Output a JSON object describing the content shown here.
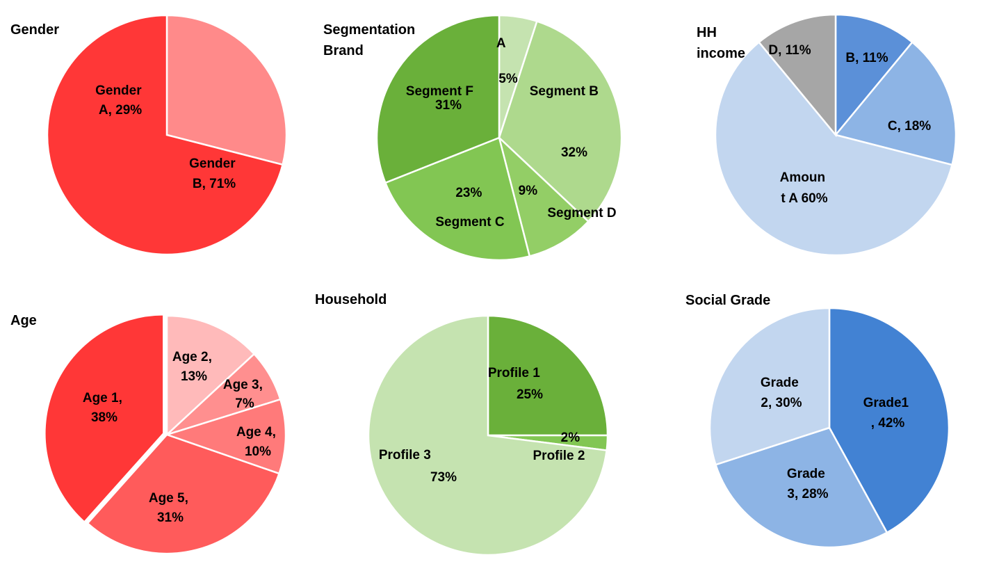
{
  "chart_data": [
    {
      "type": "pie",
      "title_lines": [
        "Gender"
      ],
      "slices": [
        {
          "label_lines": [
            "Gender",
            "A, 29%"
          ],
          "value": 29,
          "color": "#FF8A8A"
        },
        {
          "label_lines": [
            "Gender",
            "B, 71%"
          ],
          "value": 71,
          "color": "#FF3737"
        }
      ]
    },
    {
      "type": "pie",
      "title_lines": [
        "Segmentation",
        "Brand"
      ],
      "slices": [
        {
          "label_lines": [
            "A",
            "5%"
          ],
          "value": 5,
          "color": "#C5E3B0"
        },
        {
          "label_lines": [
            "Segment B",
            "32%"
          ],
          "value": 32,
          "color": "#AED98D"
        },
        {
          "label_lines": [
            "9%",
            "Segment D"
          ],
          "value": 9,
          "color": "#93CE66"
        },
        {
          "label_lines": [
            "23%",
            "Segment C"
          ],
          "value": 23,
          "color": "#82C653"
        },
        {
          "label_lines": [
            "Segment F",
            "31%"
          ],
          "value": 31,
          "color": "#6AB03A"
        }
      ]
    },
    {
      "type": "pie",
      "title_lines": [
        "HH",
        "income"
      ],
      "slices": [
        {
          "label_lines": [
            "B, 11%"
          ],
          "value": 11,
          "color": "#5B90D8"
        },
        {
          "label_lines": [
            "C, 18%"
          ],
          "value": 18,
          "color": "#8DB4E5"
        },
        {
          "label_lines": [
            "Amoun",
            "t A 60%"
          ],
          "value": 60,
          "color": "#C2D6EF"
        },
        {
          "label_lines": [
            "D, 11%"
          ],
          "value": 11,
          "color": "#A6A6A6"
        }
      ]
    },
    {
      "type": "pie",
      "title_lines": [
        "Age"
      ],
      "slices": [
        {
          "label_lines": [
            "Age 2,",
            "13%"
          ],
          "value": 13,
          "color": "#FFBABA"
        },
        {
          "label_lines": [
            "Age 3,",
            "7%"
          ],
          "value": 7,
          "color": "#FF8F8F"
        },
        {
          "label_lines": [
            "Age 4,",
            "10%"
          ],
          "value": 10,
          "color": "#FF7A7A"
        },
        {
          "label_lines": [
            "Age 5,",
            "31%"
          ],
          "value": 31,
          "color": "#FF5B5B"
        },
        {
          "label_lines": [
            "Age 1,",
            "38%"
          ],
          "value": 38,
          "color": "#FF3737"
        }
      ]
    },
    {
      "type": "pie",
      "title_lines": [
        "Household"
      ],
      "slices": [
        {
          "label_lines": [
            "Profile 1",
            "25%"
          ],
          "value": 25,
          "color": "#6AB03A"
        },
        {
          "label_lines": [
            "2%",
            "Profile 2"
          ],
          "value": 2,
          "color": "#82C653"
        },
        {
          "label_lines": [
            "Profile 3",
            "73%"
          ],
          "value": 73,
          "color": "#C5E3B0"
        }
      ]
    },
    {
      "type": "pie",
      "title_lines": [
        "Social Grade"
      ],
      "slices": [
        {
          "label_lines": [
            "Grade1",
            ", 42%"
          ],
          "value": 42,
          "color": "#4282D3"
        },
        {
          "label_lines": [
            "Grade",
            "3, 28%"
          ],
          "value": 28,
          "color": "#8DB4E5"
        },
        {
          "label_lines": [
            "Grade",
            "2, 30%"
          ],
          "value": 30,
          "color": "#C2D6EF"
        }
      ]
    }
  ]
}
